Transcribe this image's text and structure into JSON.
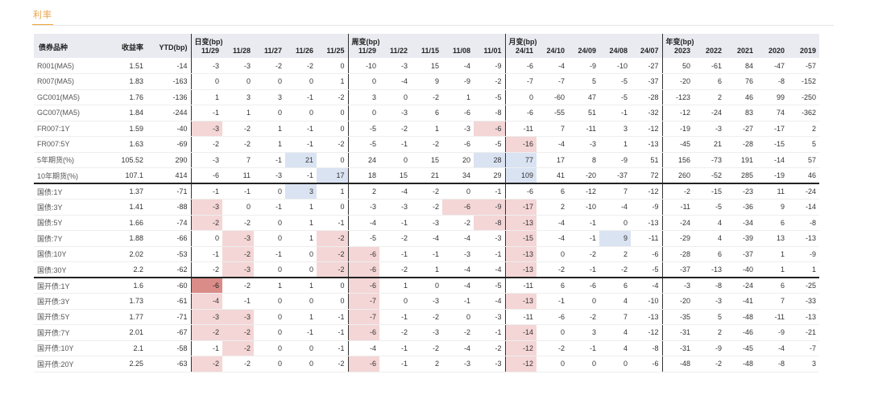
{
  "tab": {
    "label": "利率"
  },
  "header": {
    "name": "债券品种",
    "yield": "收益率",
    "ytd": "YTD(bp)",
    "daily": {
      "label": "日变(bp)",
      "cols": [
        "11/29",
        "11/28",
        "11/27",
        "11/26",
        "11/25"
      ]
    },
    "weekly": {
      "label": "周变(bp)",
      "cols": [
        "11/29",
        "11/22",
        "11/15",
        "11/08",
        "11/01"
      ]
    },
    "monthly": {
      "label": "月变(bp)",
      "cols": [
        "24/11",
        "24/10",
        "24/09",
        "24/08",
        "24/07"
      ]
    },
    "yearly": {
      "label": "年变(bp)",
      "cols": [
        "2023",
        "2022",
        "2021",
        "2020",
        "2019"
      ]
    }
  },
  "colors": {
    "accent": "#f2a83b",
    "header_bg": "#e9ebf1",
    "neg": "#f4d6d6",
    "neg_strong": "#d98c88",
    "pos": "#dae3f2"
  },
  "groups": [
    {
      "rows": [
        {
          "name": "R001(MA5)",
          "yield": "1.51",
          "ytd": "-14",
          "daily": [
            "-3",
            "-3",
            "-2",
            "-2",
            "0"
          ],
          "weekly": [
            "-10",
            "-3",
            "15",
            "-4",
            "-9"
          ],
          "monthly": [
            "-6",
            "-4",
            "-9",
            "-10",
            "-27"
          ],
          "yearly": [
            "50",
            "-61",
            "84",
            "-47",
            "-57"
          ]
        },
        {
          "name": "R007(MA5)",
          "yield": "1.83",
          "ytd": "-163",
          "daily": [
            "0",
            "0",
            "0",
            "0",
            "1"
          ],
          "weekly": [
            "0",
            "-4",
            "9",
            "-9",
            "-2"
          ],
          "monthly": [
            "-7",
            "-7",
            "5",
            "-5",
            "-37"
          ],
          "yearly": [
            "-20",
            "6",
            "76",
            "-8",
            "-152"
          ]
        },
        {
          "name": "GC001(MA5)",
          "yield": "1.76",
          "ytd": "-136",
          "daily": [
            "1",
            "3",
            "3",
            "-1",
            "-2"
          ],
          "weekly": [
            "3",
            "0",
            "-2",
            "1",
            "-5"
          ],
          "monthly": [
            "0",
            "-60",
            "47",
            "-5",
            "-28"
          ],
          "yearly": [
            "-123",
            "2",
            "46",
            "99",
            "-250"
          ]
        },
        {
          "name": "GC007(MA5)",
          "yield": "1.84",
          "ytd": "-244",
          "daily": [
            "-1",
            "1",
            "0",
            "0",
            "0"
          ],
          "weekly": [
            "0",
            "-3",
            "6",
            "-6",
            "-8"
          ],
          "monthly": [
            "-6",
            "-55",
            "51",
            "-1",
            "-32"
          ],
          "yearly": [
            "-12",
            "-24",
            "83",
            "74",
            "-362"
          ]
        },
        {
          "name": "FR007:1Y",
          "yield": "1.59",
          "ytd": "-40",
          "daily": [
            "-3",
            "-2",
            "1",
            "-1",
            "0"
          ],
          "weekly": [
            "-5",
            "-2",
            "1",
            "-3",
            "-6"
          ],
          "monthly": [
            "-11",
            "7",
            "-11",
            "3",
            "-12"
          ],
          "yearly": [
            "-19",
            "-3",
            "-27",
            "-17",
            "2"
          ]
        },
        {
          "name": "FR007:5Y",
          "yield": "1.63",
          "ytd": "-69",
          "daily": [
            "-2",
            "-2",
            "1",
            "-1",
            "-2"
          ],
          "weekly": [
            "-5",
            "-1",
            "-2",
            "-6",
            "-5"
          ],
          "monthly": [
            "-16",
            "-4",
            "-3",
            "1",
            "-13"
          ],
          "yearly": [
            "-45",
            "21",
            "-28",
            "-15",
            "5"
          ]
        },
        {
          "name": "5年期货(%)",
          "yield": "105.52",
          "ytd": "290",
          "daily": [
            "-3",
            "7",
            "-1",
            "21",
            "0"
          ],
          "weekly": [
            "24",
            "0",
            "15",
            "20",
            "28"
          ],
          "monthly": [
            "77",
            "17",
            "8",
            "-9",
            "51"
          ],
          "yearly": [
            "156",
            "-73",
            "191",
            "-14",
            "57"
          ]
        },
        {
          "name": "10年期货(%)",
          "yield": "107.1",
          "ytd": "414",
          "daily": [
            "-6",
            "11",
            "-3",
            "-1",
            "17"
          ],
          "weekly": [
            "18",
            "15",
            "21",
            "34",
            "29"
          ],
          "monthly": [
            "109",
            "41",
            "-20",
            "-37",
            "72"
          ],
          "yearly": [
            "260",
            "-52",
            "285",
            "-19",
            "46"
          ]
        }
      ]
    },
    {
      "rows": [
        {
          "name": "国债:1Y",
          "yield": "1.37",
          "ytd": "-71",
          "daily": [
            "-1",
            "-1",
            "0",
            "3",
            "1"
          ],
          "weekly": [
            "2",
            "-4",
            "-2",
            "0",
            "-1"
          ],
          "monthly": [
            "-6",
            "6",
            "-12",
            "7",
            "-12"
          ],
          "yearly": [
            "-2",
            "-15",
            "-23",
            "11",
            "-24"
          ]
        },
        {
          "name": "国债:3Y",
          "yield": "1.41",
          "ytd": "-88",
          "daily": [
            "-3",
            "0",
            "-1",
            "1",
            "0"
          ],
          "weekly": [
            "-3",
            "-3",
            "-2",
            "-6",
            "-9"
          ],
          "monthly": [
            "-17",
            "2",
            "-10",
            "-4",
            "-9"
          ],
          "yearly": [
            "-11",
            "-5",
            "-36",
            "9",
            "-14"
          ]
        },
        {
          "name": "国债:5Y",
          "yield": "1.66",
          "ytd": "-74",
          "daily": [
            "-2",
            "-2",
            "0",
            "1",
            "-1"
          ],
          "weekly": [
            "-4",
            "-1",
            "-3",
            "-2",
            "-8"
          ],
          "monthly": [
            "-13",
            "-4",
            "-1",
            "0",
            "-13"
          ],
          "yearly": [
            "-24",
            "4",
            "-34",
            "6",
            "-8"
          ]
        },
        {
          "name": "国债:7Y",
          "yield": "1.88",
          "ytd": "-66",
          "daily": [
            "0",
            "-3",
            "0",
            "1",
            "-2"
          ],
          "weekly": [
            "-5",
            "-2",
            "-4",
            "-4",
            "-3"
          ],
          "monthly": [
            "-15",
            "-4",
            "-1",
            "9",
            "-11"
          ],
          "yearly": [
            "-29",
            "4",
            "-39",
            "13",
            "-13"
          ]
        },
        {
          "name": "国债:10Y",
          "yield": "2.02",
          "ytd": "-53",
          "daily": [
            "-1",
            "-2",
            "-1",
            "0",
            "-2"
          ],
          "weekly": [
            "-6",
            "-1",
            "-1",
            "-3",
            "-1"
          ],
          "monthly": [
            "-13",
            "0",
            "-2",
            "2",
            "-6"
          ],
          "yearly": [
            "-28",
            "6",
            "-37",
            "1",
            "-9"
          ]
        },
        {
          "name": "国债:30Y",
          "yield": "2.2",
          "ytd": "-62",
          "daily": [
            "-2",
            "-3",
            "0",
            "0",
            "-2"
          ],
          "weekly": [
            "-6",
            "-2",
            "1",
            "-4",
            "-4"
          ],
          "monthly": [
            "-13",
            "-2",
            "-1",
            "-2",
            "-5"
          ],
          "yearly": [
            "-37",
            "-13",
            "-40",
            "1",
            "1"
          ]
        }
      ]
    },
    {
      "rows": [
        {
          "name": "国开债:1Y",
          "yield": "1.6",
          "ytd": "-60",
          "daily": [
            "-6",
            "-2",
            "1",
            "1",
            "0"
          ],
          "weekly": [
            "-6",
            "1",
            "0",
            "-4",
            "-5"
          ],
          "monthly": [
            "-11",
            "6",
            "-6",
            "6",
            "-4"
          ],
          "yearly": [
            "-3",
            "-8",
            "-24",
            "6",
            "-25"
          ]
        },
        {
          "name": "国开债:3Y",
          "yield": "1.73",
          "ytd": "-61",
          "daily": [
            "-4",
            "-1",
            "0",
            "0",
            "0"
          ],
          "weekly": [
            "-7",
            "0",
            "-3",
            "-1",
            "-4"
          ],
          "monthly": [
            "-13",
            "-1",
            "0",
            "4",
            "-10"
          ],
          "yearly": [
            "-20",
            "-3",
            "-41",
            "7",
            "-33"
          ]
        },
        {
          "name": "国开债:5Y",
          "yield": "1.77",
          "ytd": "-71",
          "daily": [
            "-3",
            "-3",
            "0",
            "1",
            "-1"
          ],
          "weekly": [
            "-7",
            "-1",
            "-2",
            "0",
            "-3"
          ],
          "monthly": [
            "-11",
            "-6",
            "-2",
            "7",
            "-13"
          ],
          "yearly": [
            "-35",
            "5",
            "-48",
            "-11",
            "-13"
          ]
        },
        {
          "name": "国开债:7Y",
          "yield": "2.01",
          "ytd": "-67",
          "daily": [
            "-2",
            "-2",
            "0",
            "-1",
            "-1"
          ],
          "weekly": [
            "-6",
            "-2",
            "-3",
            "-2",
            "-1"
          ],
          "monthly": [
            "-14",
            "0",
            "3",
            "4",
            "-12"
          ],
          "yearly": [
            "-31",
            "2",
            "-46",
            "-9",
            "-21"
          ]
        },
        {
          "name": "国开债:10Y",
          "yield": "2.1",
          "ytd": "-58",
          "daily": [
            "-1",
            "-2",
            "0",
            "0",
            "-1"
          ],
          "weekly": [
            "-4",
            "-1",
            "-2",
            "-4",
            "-2"
          ],
          "monthly": [
            "-12",
            "-2",
            "-1",
            "4",
            "-8"
          ],
          "yearly": [
            "-31",
            "-9",
            "-45",
            "-4",
            "-7"
          ]
        },
        {
          "name": "国开债:20Y",
          "yield": "2.25",
          "ytd": "-63",
          "daily": [
            "-2",
            "-2",
            "0",
            "0",
            "-2"
          ],
          "weekly": [
            "-6",
            "-1",
            "2",
            "-3",
            "-3"
          ],
          "monthly": [
            "-12",
            "0",
            "0",
            "0",
            "-6"
          ],
          "yearly": [
            "-48",
            "-2",
            "-48",
            "-8",
            "3"
          ]
        }
      ]
    }
  ]
}
